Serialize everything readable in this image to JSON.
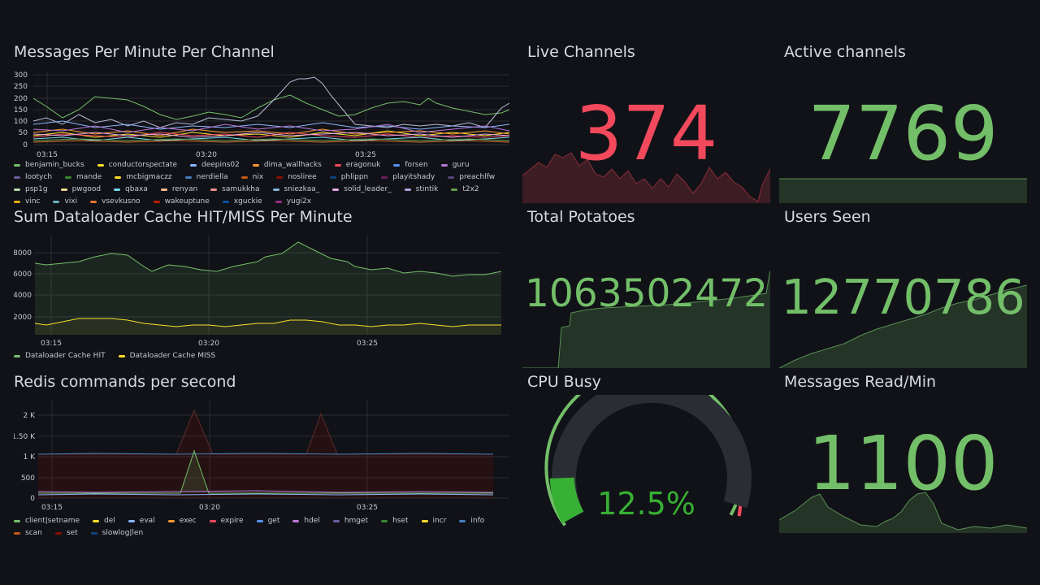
{
  "panels": {
    "messages_per_minute": {
      "title": "Messages Per Minute Per Channel",
      "y_ticks": [
        "300",
        "250",
        "200",
        "150",
        "100",
        "50",
        "0"
      ],
      "x_ticks": [
        "03:15",
        "03:20",
        "03:25"
      ],
      "legend": [
        {
          "name": "benjamin_bucks",
          "color": "#73bf69"
        },
        {
          "name": "conductorspectate",
          "color": "#fade2a"
        },
        {
          "name": "deepins02",
          "color": "#8ab8ff"
        },
        {
          "name": "dima_wallhacks",
          "color": "#ff9830"
        },
        {
          "name": "eragonuk",
          "color": "#f2495c"
        },
        {
          "name": "forsen",
          "color": "#5794f2"
        },
        {
          "name": "guru",
          "color": "#b877d9"
        },
        {
          "name": "lootych",
          "color": "#705da0"
        },
        {
          "name": "mande",
          "color": "#37872d"
        },
        {
          "name": "mcbigmaczz",
          "color": "#fade2a"
        },
        {
          "name": "nerdiella",
          "color": "#447ebc"
        },
        {
          "name": "nix",
          "color": "#c15c17"
        },
        {
          "name": "nosliree",
          "color": "#890f02"
        },
        {
          "name": "phlippn",
          "color": "#0a437c"
        },
        {
          "name": "playitshady",
          "color": "#6d1f62"
        },
        {
          "name": "preachlfw",
          "color": "#584477"
        },
        {
          "name": "psp1g",
          "color": "#b7dbab"
        },
        {
          "name": "pwgood",
          "color": "#f4d598"
        },
        {
          "name": "qbaxa",
          "color": "#70dbed"
        },
        {
          "name": "renyan",
          "color": "#f9ba8f"
        },
        {
          "name": "samukkha",
          "color": "#f29191"
        },
        {
          "name": "sniezkaa_",
          "color": "#82b5d8"
        },
        {
          "name": "solid_leader_",
          "color": "#e5a8e2"
        },
        {
          "name": "stintik",
          "color": "#aea2e0"
        },
        {
          "name": "t2x2",
          "color": "#629e51"
        },
        {
          "name": "vinc",
          "color": "#e5ac0e"
        },
        {
          "name": "vixi",
          "color": "#64b0c8"
        },
        {
          "name": "vsevkusno",
          "color": "#e0752d"
        },
        {
          "name": "wakeuptune",
          "color": "#bf1b00"
        },
        {
          "name": "xguckie",
          "color": "#0a50a1"
        },
        {
          "name": "yugi2x",
          "color": "#962d82"
        }
      ]
    },
    "dataloader_cache": {
      "title": "Sum Dataloader Cache HIT/MISS Per Minute",
      "y_ticks": [
        "8000",
        "6000",
        "4000",
        "2000"
      ],
      "x_ticks": [
        "03:15",
        "03:20",
        "03:25"
      ],
      "legend": [
        {
          "name": "Dataloader Cache HIT",
          "color": "#73bf69"
        },
        {
          "name": "Dataloader Cache MISS",
          "color": "#fade2a"
        }
      ]
    },
    "redis_commands": {
      "title": "Redis commands per second",
      "y_ticks": [
        "2 K",
        "1.50 K",
        "1 K",
        "500",
        "0"
      ],
      "x_ticks": [
        "03:15",
        "03:20",
        "03:25"
      ],
      "legend": [
        {
          "name": "client|setname",
          "color": "#73bf69"
        },
        {
          "name": "del",
          "color": "#fade2a"
        },
        {
          "name": "eval",
          "color": "#8ab8ff"
        },
        {
          "name": "exec",
          "color": "#ff9830"
        },
        {
          "name": "expire",
          "color": "#f2495c"
        },
        {
          "name": "get",
          "color": "#5794f2"
        },
        {
          "name": "hdel",
          "color": "#b877d9"
        },
        {
          "name": "hmget",
          "color": "#705da0"
        },
        {
          "name": "hset",
          "color": "#37872d"
        },
        {
          "name": "incr",
          "color": "#fade2a"
        },
        {
          "name": "info",
          "color": "#447ebc"
        },
        {
          "name": "scan",
          "color": "#c15c17"
        },
        {
          "name": "set",
          "color": "#890f02"
        },
        {
          "name": "slowlog|len",
          "color": "#0a437c"
        }
      ]
    },
    "live_channels": {
      "title": "Live Channels",
      "value": "374",
      "color": "#f2495c"
    },
    "active_channels": {
      "title": "Active channels",
      "value": "7769",
      "color": "#73bf69"
    },
    "total_potatoes": {
      "title": "Total Potatoes",
      "value": "1063502472",
      "color": "#73bf69"
    },
    "users_seen": {
      "title": "Users Seen",
      "value": "12770786",
      "color": "#73bf69"
    },
    "cpu_busy": {
      "title": "CPU Busy",
      "value": "12.5%",
      "percent": 12.5,
      "color": "#37b034"
    },
    "messages_read": {
      "title": "Messages Read/Min",
      "value": "1100",
      "color": "#73bf69"
    }
  }
}
